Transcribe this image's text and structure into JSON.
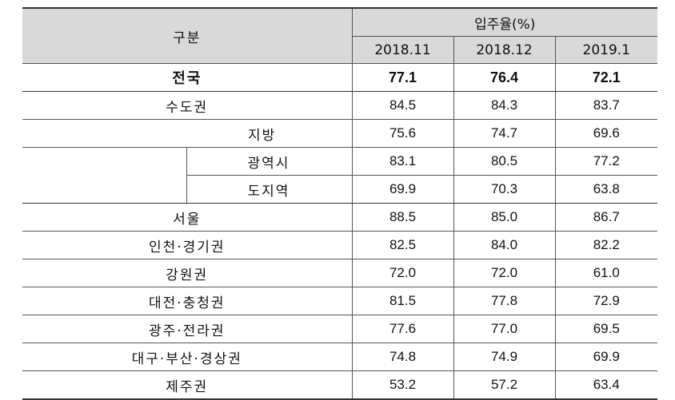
{
  "header": {
    "category": "구분",
    "group": "입주율(%)",
    "periods": [
      "2018.11",
      "2018.12",
      "2019.1"
    ]
  },
  "rows": [
    {
      "label": "전국",
      "values": [
        "77.1",
        "76.4",
        "72.1"
      ]
    },
    {
      "label": "수도권",
      "values": [
        "84.5",
        "84.3",
        "83.7"
      ]
    },
    {
      "label": "지방",
      "values": [
        "75.6",
        "74.7",
        "69.6"
      ]
    },
    {
      "label": "광역시",
      "values": [
        "83.1",
        "80.5",
        "77.2"
      ]
    },
    {
      "label": "도지역",
      "values": [
        "69.9",
        "70.3",
        "63.8"
      ]
    },
    {
      "label": "서울",
      "values": [
        "88.5",
        "85.0",
        "86.7"
      ]
    },
    {
      "label": "인천·경기권",
      "values": [
        "82.5",
        "84.0",
        "82.2"
      ]
    },
    {
      "label": "강원권",
      "values": [
        "72.0",
        "72.0",
        "61.0"
      ]
    },
    {
      "label": "대전·충청권",
      "values": [
        "81.5",
        "77.8",
        "72.9"
      ]
    },
    {
      "label": "광주·전라권",
      "values": [
        "77.6",
        "77.0",
        "69.5"
      ]
    },
    {
      "label": "대구·부산·경상권",
      "values": [
        "74.8",
        "74.9",
        "69.9"
      ]
    },
    {
      "label": "제주권",
      "values": [
        "53.2",
        "57.2",
        "63.4"
      ]
    }
  ]
}
